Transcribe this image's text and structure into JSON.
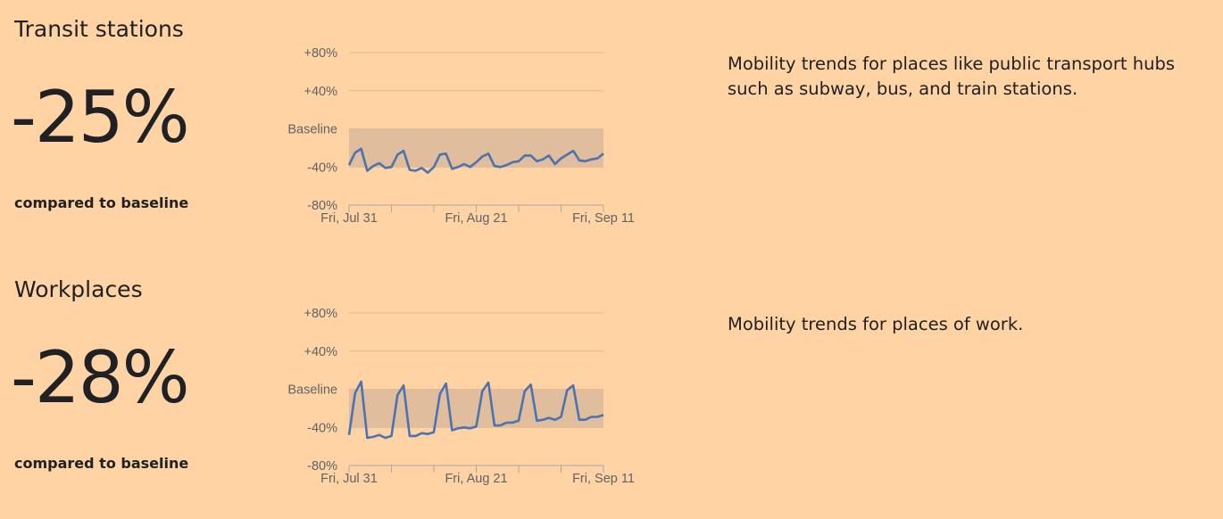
{
  "colors": {
    "background": "#ffd3a4",
    "line": "#4a73b0",
    "below_baseline_fill": "#dfbd9d",
    "gridline": "#e6b790",
    "text": "#202124",
    "tick_text": "#5f6368"
  },
  "compare_label": "compared to baseline",
  "sections": [
    {
      "title": "Transit stations",
      "value": "-25%",
      "description": "Mobility trends for places like public transport hubs such as subway, bus, and train stations."
    },
    {
      "title": "Workplaces",
      "value": "-28%",
      "description": "Mobility trends for places of work."
    }
  ],
  "chart_data": [
    {
      "type": "line",
      "ylim": [
        -80,
        80
      ],
      "y_ticks": [
        {
          "value": 80,
          "label": "+80%"
        },
        {
          "value": 40,
          "label": "+40%"
        },
        {
          "value": 0,
          "label": "Baseline"
        },
        {
          "value": -40,
          "label": "-40%"
        },
        {
          "value": -80,
          "label": "-80%"
        }
      ],
      "x_range": [
        "Jul 31",
        "Sep 11"
      ],
      "x_ticks": [
        "Fri, Jul 31",
        "Fri, Aug 21",
        "Fri, Sep 11"
      ],
      "baseline_band": true,
      "grid": true,
      "series": [
        {
          "values": [
            -38,
            -25,
            -21,
            -44,
            -39,
            -36,
            -41,
            -40,
            -27,
            -23,
            -43,
            -44,
            -41,
            -46,
            -40,
            -27,
            -26,
            -42,
            -40,
            -37,
            -40,
            -35,
            -29,
            -26,
            -39,
            -40,
            -38,
            -35,
            -34,
            -28,
            -28,
            -34,
            -32,
            -28,
            -37,
            -31,
            -27,
            -23,
            -33,
            -34,
            -32,
            -31,
            -26
          ]
        }
      ]
    },
    {
      "type": "line",
      "ylim": [
        -80,
        80
      ],
      "y_ticks": [
        {
          "value": 80,
          "label": "+80%"
        },
        {
          "value": 40,
          "label": "+40%"
        },
        {
          "value": 0,
          "label": "Baseline"
        },
        {
          "value": -40,
          "label": "-40%"
        },
        {
          "value": -80,
          "label": "-80%"
        }
      ],
      "x_range": [
        "Jul 31",
        "Sep 11"
      ],
      "x_ticks": [
        "Fri, Jul 31",
        "Fri, Aug 21",
        "Fri, Sep 11"
      ],
      "baseline_band": true,
      "grid": true,
      "series": [
        {
          "values": [
            -48,
            -4,
            8,
            -51,
            -50,
            -48,
            -51,
            -49,
            -6,
            4,
            -49,
            -49,
            -46,
            -47,
            -45,
            -5,
            6,
            -43,
            -41,
            -40,
            -41,
            -39,
            -2,
            7,
            -38,
            -38,
            -35,
            -35,
            -33,
            -2,
            5,
            -33,
            -32,
            -30,
            -32,
            -29,
            -1,
            4,
            -32,
            -32,
            -29,
            -29,
            -27
          ]
        }
      ]
    }
  ]
}
